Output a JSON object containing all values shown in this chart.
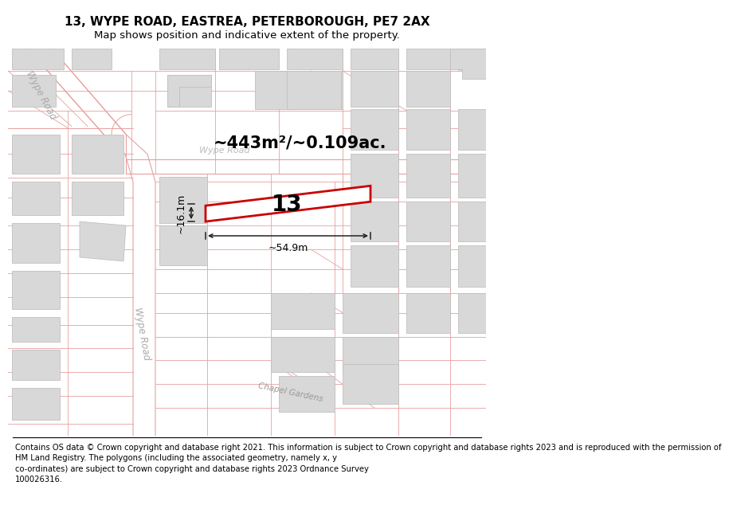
{
  "title_line1": "13, WYPE ROAD, EASTREA, PETERBOROUGH, PE7 2AX",
  "title_line2": "Map shows position and indicative extent of the property.",
  "footer_text": "Contains OS data © Crown copyright and database right 2021. This information is subject to Crown copyright and database rights 2023 and is reproduced with the permission of\nHM Land Registry. The polygons (including the associated geometry, namely x, y\nco-ordinates) are subject to Crown copyright and database rights 2023 Ordnance Survey\n100026316.",
  "bg_color": "#ffffff",
  "map_bg": "#ffffff",
  "line_color": "#e8a0a0",
  "building_fill": "#d8d8d8",
  "building_edge": "#c0c0c0",
  "highlight_fill": "#ffffff",
  "highlight_edge": "#cc0000",
  "highlight_lw": 2.0,
  "dim_color": "#222222",
  "road_label_color": "#aaaaaa",
  "area_label": "~443m²/~0.109ac.",
  "width_label": "~54.9m",
  "height_label": "~16.1m",
  "plot_number": "13",
  "road_label_top": "Wype Road",
  "road_label_mid": "Wype Road",
  "road_label_bot": "Chapel Gardens",
  "title_fs": 11,
  "sub_fs": 9.5,
  "footer_fs": 7.2,
  "area_fs": 15,
  "dim_fs": 9,
  "plot_fs": 20,
  "road_label_fs": 8.5
}
